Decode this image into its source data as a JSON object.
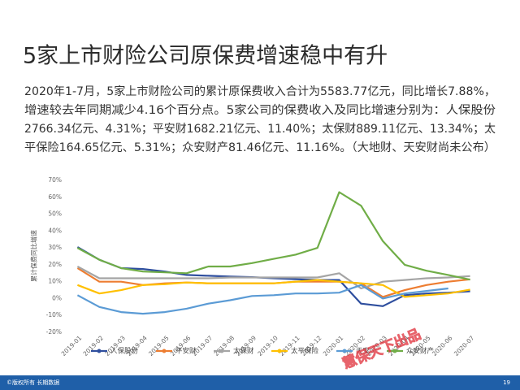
{
  "header": {
    "title": "5家上市财险公司原保费增速稳中有升"
  },
  "paragraph": [
    "2020年1-7月，5家上市财险公司的累计原保费收入合计为5583.77亿元，同比增长7.88%，",
    "增速较去年同期减少4.16个百分点。5家公司的保费收入及同比增速分别为：人保股份",
    "2766.34亿元、4.31%；平安财1682.21亿元、11.40%；太保财889.11亿元、13.34%；太",
    "平保险164.65亿元、5.31%；众安财产81.46亿元、11.16%。（大地财、天安财尚未公布）"
  ],
  "chart_data": {
    "type": "line",
    "y_label": "累计保费同比增速",
    "categories": [
      "2019-01",
      "2019-02",
      "2019-03",
      "2019-04",
      "2019-05",
      "2019-06",
      "2019-07",
      "2019-08",
      "2019-09",
      "2019-10",
      "2019-11",
      "2019-12",
      "2020-01",
      "2020-02",
      "2020-03",
      "2020-04",
      "2020-05",
      "2020-06",
      "2020-07"
    ],
    "series": [
      {
        "name": "人保股份",
        "color": "#2e4e9e",
        "values": [
          30.5,
          23,
          18,
          17.5,
          16,
          14,
          13.5,
          13,
          12.7,
          12,
          11.5,
          11,
          11,
          -3,
          -4.5,
          2,
          3,
          3.5,
          4.3
        ]
      },
      {
        "name": "平安财",
        "color": "#ed7d31",
        "values": [
          18,
          10,
          10,
          8,
          9,
          9.5,
          9,
          9,
          9,
          9,
          10,
          10,
          10,
          9,
          1,
          5,
          8,
          10,
          11.4
        ]
      },
      {
        "name": "太保财",
        "color": "#a5a5a5",
        "values": [
          19,
          12,
          12,
          12,
          12,
          12,
          12,
          12.5,
          12.5,
          12.5,
          12.5,
          12.5,
          15,
          6,
          10,
          11,
          12,
          12.5,
          13.3
        ]
      },
      {
        "name": "太平保险",
        "color": "#ffc000",
        "values": [
          8,
          3,
          5,
          8,
          8.5,
          9.5,
          9,
          9,
          9,
          9,
          10,
          11,
          10,
          9,
          8,
          1,
          2,
          3,
          5.3
        ]
      },
      {
        "name": "天安",
        "color": "#5b9bd5",
        "values": [
          2,
          -5,
          -8,
          -9,
          -8,
          -6,
          -3,
          -1,
          1.5,
          2,
          3,
          3,
          3.5,
          8,
          0,
          3,
          4.5,
          6,
          null
        ]
      },
      {
        "name": "众安财产",
        "color": "#70ad47",
        "values": [
          30,
          23,
          18,
          16,
          15.5,
          15,
          19,
          19,
          21,
          23.5,
          26,
          30,
          63,
          55,
          34,
          20,
          16.5,
          14,
          11.2
        ]
      }
    ],
    "ylim": [
      -20,
      70
    ],
    "yticks": [
      {
        "value": -20,
        "label": "-20%"
      },
      {
        "value": -10,
        "label": "-10%"
      },
      {
        "value": 0,
        "label": "0%"
      },
      {
        "value": 10,
        "label": "10%"
      },
      {
        "value": 20,
        "label": "20%"
      },
      {
        "value": 30,
        "label": "30%"
      },
      {
        "value": 40,
        "label": "40%"
      },
      {
        "value": 50,
        "label": "50%"
      },
      {
        "value": 60,
        "label": "60%"
      },
      {
        "value": 70,
        "label": "70%"
      }
    ],
    "grid": false
  },
  "watermark": "慧保天下出品",
  "footer": {
    "left": "©版权所有 长期数据",
    "page": "19"
  }
}
